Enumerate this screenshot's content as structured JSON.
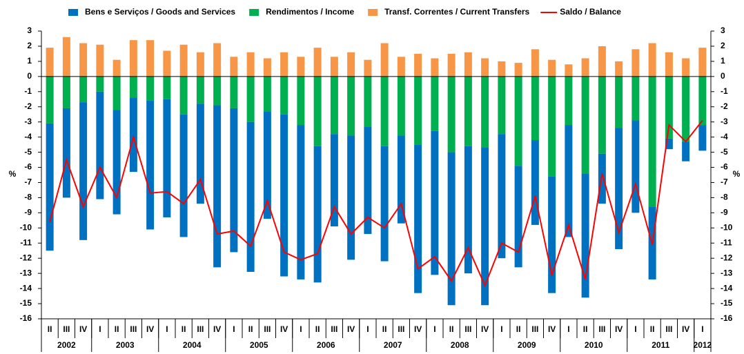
{
  "chart_data": {
    "type": "bar",
    "y_label": "%",
    "ylim": [
      -16,
      3
    ],
    "yticks": [
      3,
      2,
      1,
      0,
      -1,
      -2,
      -3,
      -4,
      -5,
      -6,
      -7,
      -8,
      -9,
      -10,
      -11,
      -12,
      -13,
      -14,
      -15,
      -16
    ],
    "legend": "top",
    "categories": [
      "II",
      "III",
      "IV",
      "I",
      "II",
      "III",
      "IV",
      "I",
      "II",
      "III",
      "IV",
      "I",
      "II",
      "III",
      "IV",
      "I",
      "II",
      "III",
      "IV",
      "I",
      "II",
      "III",
      "IV",
      "I",
      "II",
      "III",
      "IV",
      "I",
      "II",
      "III",
      "IV",
      "I",
      "II",
      "III",
      "IV",
      "I",
      "II",
      "III",
      "IV",
      "I"
    ],
    "years": [
      "2002",
      "2003",
      "2004",
      "2005",
      "2006",
      "2007",
      "2008",
      "2009",
      "2010",
      "2011",
      "2012"
    ],
    "series": [
      {
        "name": "Bens e Serviços / Goods and Services",
        "type": "bar",
        "color": "#0070c0",
        "values": [
          -8.4,
          -5.9,
          -9.1,
          -7.1,
          -6.9,
          -4.9,
          -8.5,
          -7.8,
          -8.1,
          -6.6,
          -10.7,
          -9.5,
          -9.9,
          -7.1,
          -10.7,
          -10.2,
          -9.0,
          -6.1,
          -8.2,
          -7.1,
          -7.6,
          -5.8,
          -9.8,
          -9.5,
          -10.1,
          -8.4,
          -10.4,
          -8.2,
          -6.7,
          -5.6,
          -7.7,
          -7.4,
          -8.2,
          -3.3,
          -8.0,
          -6.1,
          -4.8,
          -0.7,
          -1.3,
          -1.7
        ]
      },
      {
        "name": "Rendimentos / Income",
        "type": "bar",
        "color": "#00b050",
        "values": [
          -3.1,
          -2.1,
          -1.7,
          -1.0,
          -2.2,
          -1.4,
          -1.6,
          -1.5,
          -2.5,
          -1.8,
          -1.9,
          -2.1,
          -3.0,
          -2.3,
          -2.5,
          -3.2,
          -4.6,
          -3.8,
          -3.9,
          -3.3,
          -4.6,
          -3.9,
          -4.5,
          -3.6,
          -5.0,
          -4.6,
          -4.7,
          -3.8,
          -5.9,
          -4.2,
          -6.6,
          -3.2,
          -6.4,
          -5.1,
          -3.4,
          -2.9,
          -8.6,
          -4.1,
          -4.3,
          -3.2
        ]
      },
      {
        "name": "Transf. Correntes / Current Transfers",
        "type": "bar",
        "color": "#f79646",
        "values": [
          1.9,
          2.6,
          2.2,
          2.1,
          1.1,
          2.4,
          2.4,
          1.7,
          2.1,
          1.6,
          2.2,
          1.3,
          1.6,
          1.2,
          1.6,
          1.3,
          1.9,
          1.3,
          1.6,
          1.1,
          2.2,
          1.3,
          1.5,
          1.2,
          1.5,
          1.6,
          1.2,
          1.0,
          0.9,
          1.8,
          1.1,
          0.8,
          1.2,
          2.0,
          1.0,
          1.8,
          2.2,
          1.6,
          1.2,
          1.9
        ]
      },
      {
        "name": "Saldo / Balance",
        "type": "line",
        "color": "#ff0000",
        "values": [
          -9.6,
          -5.5,
          -8.6,
          -6.0,
          -8.0,
          -4.0,
          -7.7,
          -7.6,
          -8.4,
          -6.8,
          -10.4,
          -10.2,
          -11.2,
          -8.2,
          -11.6,
          -12.1,
          -11.7,
          -8.6,
          -10.4,
          -9.3,
          -10.0,
          -8.4,
          -12.7,
          -11.9,
          -13.5,
          -11.3,
          -13.8,
          -11.0,
          -11.6,
          -7.9,
          -13.1,
          -9.8,
          -13.4,
          -6.4,
          -10.3,
          -7.1,
          -11.1,
          -3.2,
          -4.3,
          -2.9
        ]
      }
    ]
  }
}
